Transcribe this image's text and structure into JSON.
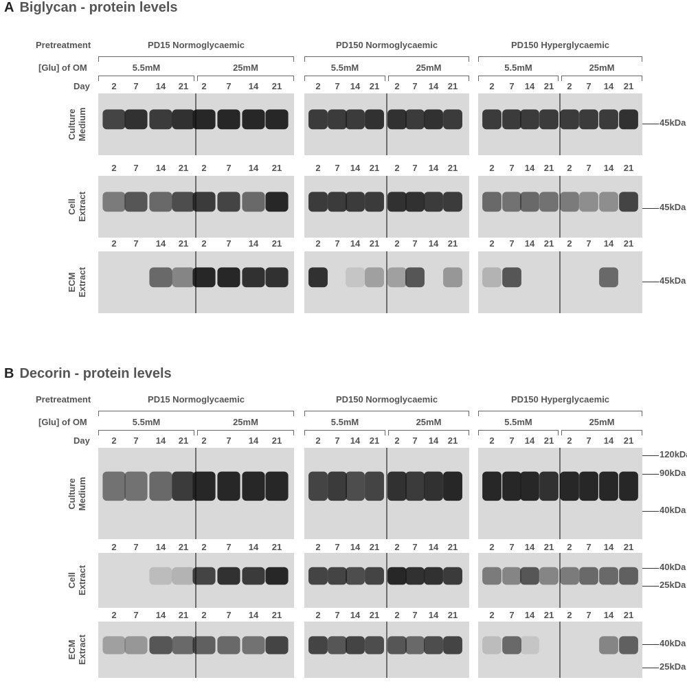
{
  "colors": {
    "label_text": "#555555",
    "blot_background": "#d9d9d9",
    "band": "#1e1e1e"
  },
  "labels": {
    "pretreatment": "Pretreatment",
    "glu": "[Glu] of OM",
    "day": "Day",
    "culture": [
      "Culture",
      "Medium"
    ],
    "cell": [
      "Cell",
      "Extract"
    ],
    "ecm": [
      "ECM",
      "Extract"
    ]
  },
  "groups": [
    "PD15 Normoglycaemic",
    "PD150 Normoglycaemic",
    "PD150 Hyperglycaemic"
  ],
  "concentrations": [
    "5.5mM",
    "25mM"
  ],
  "days": [
    "2",
    "7",
    "14",
    "21"
  ],
  "panels": [
    {
      "letter": "A",
      "title": "Biglycan - protein levels",
      "blots": [
        {
          "name": "culture-medium",
          "markers": [
            "45kDa"
          ]
        },
        {
          "name": "cell-extract",
          "markers": [
            "45kDa"
          ]
        },
        {
          "name": "ecm-extract",
          "markers": [
            "45kDa"
          ]
        }
      ]
    },
    {
      "letter": "B",
      "title": "Decorin - protein levels",
      "blots": [
        {
          "name": "culture-medium",
          "markers": [
            "120kDa",
            "90kDa",
            "40kDa"
          ]
        },
        {
          "name": "cell-extract",
          "markers": [
            "40kDa",
            "25kDa"
          ]
        },
        {
          "name": "ecm-extract",
          "markers": [
            "40kDa",
            "25kDa"
          ]
        }
      ]
    }
  ]
}
